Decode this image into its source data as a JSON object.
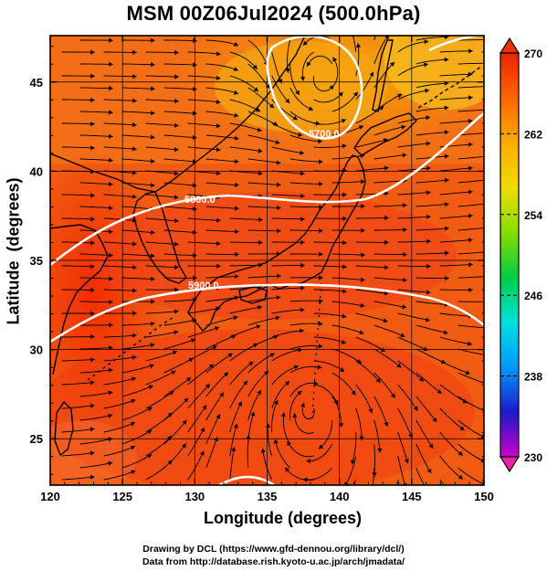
{
  "title": "MSM 00Z06Jul2024 (500.0hPa)",
  "credits": {
    "line1": "Drawing by DCL (https://www.gfd-dennou.org/library/dcl/)",
    "line2": "Data from http://database.rish.kyoto-u.ac.jp/arch/jmadata/"
  },
  "chart_data": {
    "type": "map",
    "xlabel": "Longitude (degrees)",
    "ylabel": "Latitude  (degrees)",
    "xlim": [
      120,
      150
    ],
    "ylim": [
      22.4,
      47.6
    ],
    "x_ticks": [
      "120",
      "125",
      "130",
      "135",
      "140",
      "145",
      "150"
    ],
    "y_ticks": [
      "25",
      "30",
      "35",
      "40",
      "45"
    ],
    "colorbar": {
      "min": 230,
      "max": 270,
      "ticks": [
        "270",
        "262",
        "254",
        "246",
        "238",
        "230"
      ],
      "colors": [
        "#cc00cc",
        "#1a1acc",
        "#0099ff",
        "#00e0e0",
        "#00cc44",
        "#88dd00",
        "#eedd00",
        "#ffaa00",
        "#ff6600",
        "#ee2200"
      ]
    },
    "contours": [
      {
        "label": "5800.0"
      },
      {
        "label": "5900.0"
      },
      {
        "label": "5700.0"
      }
    ],
    "shading_field": "temperature (K), mostly 262-268",
    "vectors": "streamlines of wind, westerly jet between 33N and 40N, anticyclonic gyre south of 32N, cyclonic low near 45N 139E"
  }
}
